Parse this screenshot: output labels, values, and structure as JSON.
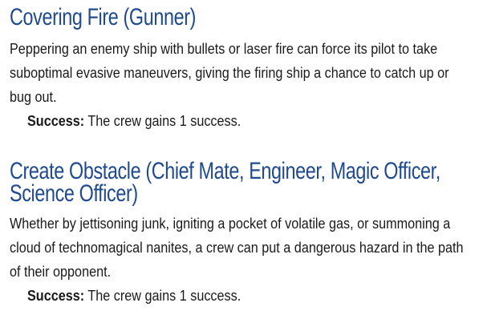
{
  "sections": [
    {
      "title": "Covering Fire (Gunner)",
      "body": "Peppering an enemy ship with bullets or laser fire can force its pilot to take suboptimal evasive maneuvers, giving the firing ship a chance to catch up or bug out.",
      "success_label": "Success:",
      "success_text": " The crew gains 1 success."
    },
    {
      "title": "Create Obstacle (Chief Mate, Engineer, Magic Officer, Science Officer)",
      "body": "Whether by jettisoning junk, igniting a pocket of volatile gas, or summoning a cloud of technomagical nanites, a crew can put a dangerous hazard in the path of their opponent.",
      "success_label": "Success:",
      "success_text": " The crew gains 1 success."
    }
  ],
  "colors": {
    "heading": "#1f4a8e",
    "text": "#1a1a1a",
    "background": "#ffffff"
  }
}
